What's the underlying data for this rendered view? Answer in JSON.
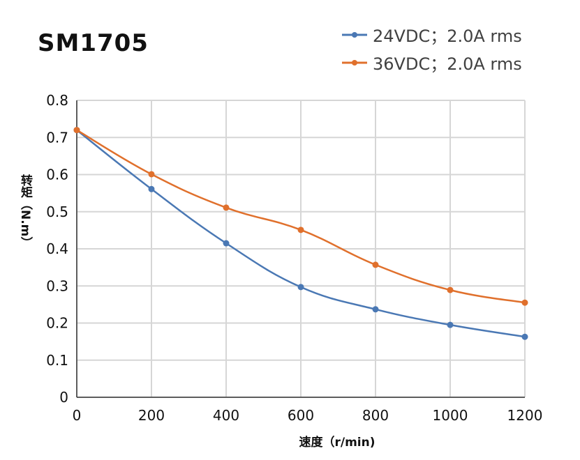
{
  "chart_data": {
    "type": "line",
    "title": "SM1705",
    "xlabel": "速度（r/min)",
    "ylabel": "转矩（N.m）",
    "xlim": [
      0,
      1200
    ],
    "ylim": [
      0,
      0.8
    ],
    "xticks": [
      0,
      200,
      400,
      600,
      800,
      1000,
      1200
    ],
    "yticks": [
      0,
      0.1,
      0.2,
      0.3,
      0.4,
      0.5,
      0.6,
      0.7,
      0.8
    ],
    "grid": true,
    "legend_position": "top-right",
    "x": [
      0,
      200,
      400,
      600,
      800,
      1000,
      1200
    ],
    "series": [
      {
        "name": "24VDC；2.0A rms",
        "color": "#4a78b4",
        "values": [
          0.72,
          0.561,
          0.415,
          0.297,
          0.237,
          0.195,
          0.163
        ]
      },
      {
        "name": "36VDC；2.0A rms",
        "color": "#e0702c",
        "values": [
          0.72,
          0.601,
          0.511,
          0.451,
          0.357,
          0.289,
          0.255
        ]
      }
    ]
  }
}
